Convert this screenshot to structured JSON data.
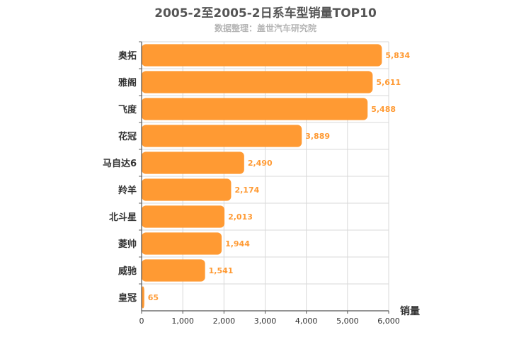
{
  "chart_data": {
    "type": "bar",
    "orientation": "horizontal",
    "title": "2005-2至2005-2日系车型销量TOP10",
    "subtitle": "数据整理：盖世汽车研究院",
    "categories": [
      "奥拓",
      "雅阁",
      "飞度",
      "花冠",
      "马自达6",
      "羚羊",
      "北斗星",
      "菱帅",
      "威驰",
      "皇冠"
    ],
    "values": [
      5834,
      5611,
      5488,
      3889,
      2490,
      2174,
      2013,
      1944,
      1541,
      65
    ],
    "value_labels": [
      "5,834",
      "5,611",
      "5,488",
      "3,889",
      "2,490",
      "2,174",
      "2,013",
      "1,944",
      "1,541",
      "65"
    ],
    "xlabel": "销量",
    "xlim": [
      0,
      6000
    ],
    "ticks": [
      0,
      1000,
      2000,
      3000,
      4000,
      5000,
      6000
    ],
    "tick_labels": [
      "0",
      "1,000",
      "2,000",
      "3,000",
      "4,000",
      "5,000",
      "6,000"
    ],
    "grid": true,
    "bar_color": "#ff9a33",
    "label_color": "#ff9a33"
  }
}
